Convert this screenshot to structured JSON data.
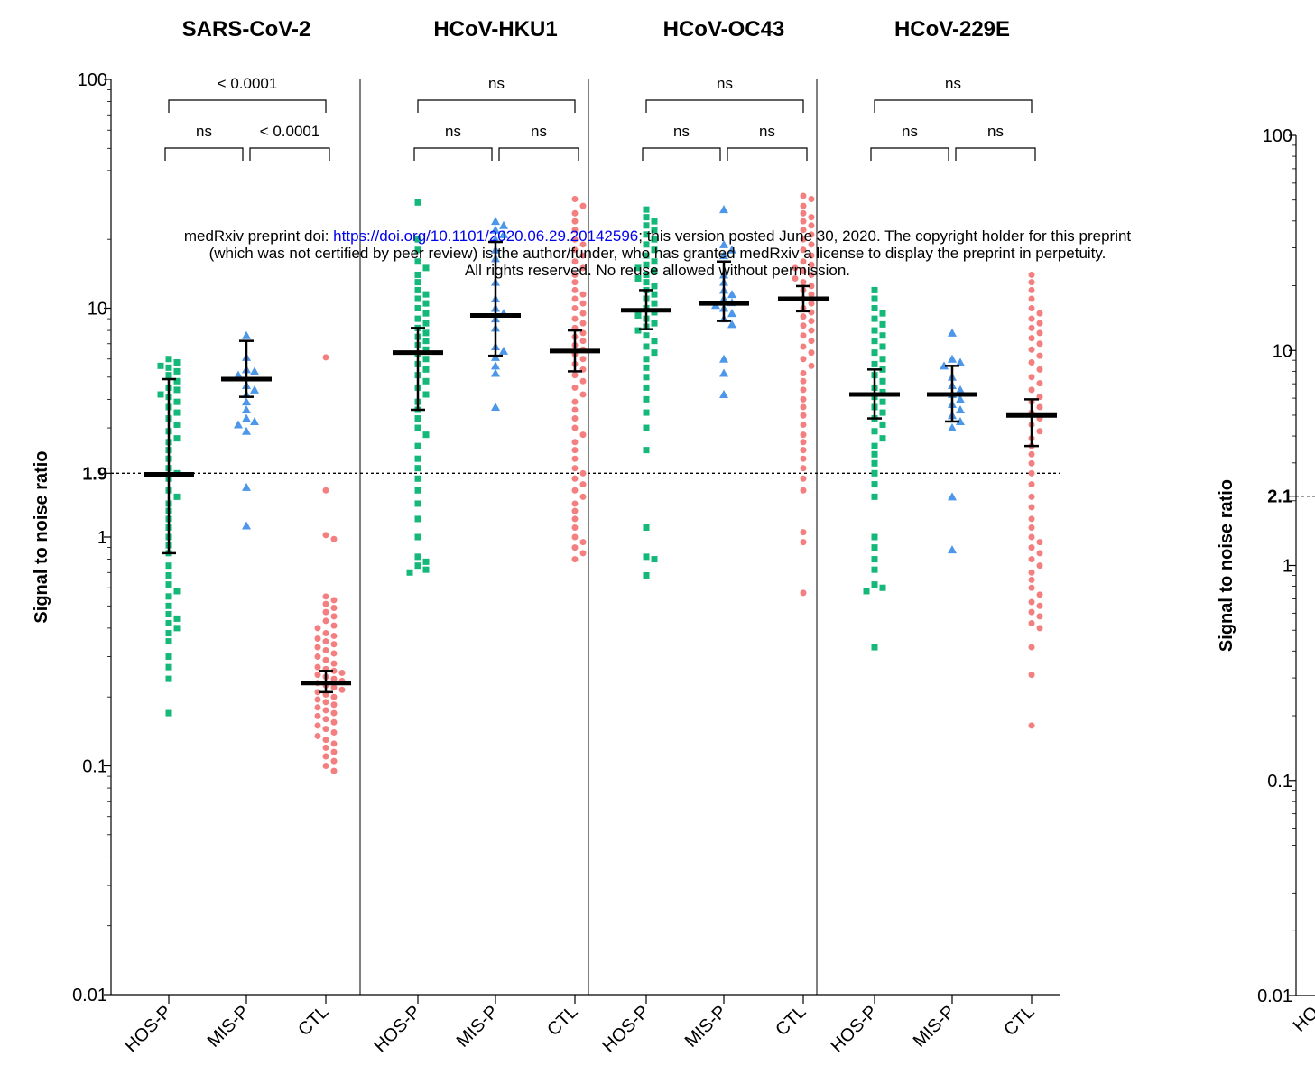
{
  "notice": {
    "line1_prefix": "medRxiv preprint doi: ",
    "doi": "https://doi.org/10.1101/2020.06.29.20142596",
    "line1_suffix": "; this version posted June 30, 2020. The copyright holder for this preprint",
    "line2": "(which was not certified by peer review) is the author/funder, who has granted medRxiv a license to display the preprint in perpetuity.",
    "line3": "All rights reserved. No reuse allowed without permission."
  },
  "colors": {
    "HOS-P": "#14b878",
    "MIS-P": "#4c97ea",
    "CTL": "#f37f80"
  },
  "chart_data": [
    {
      "type": "scatter",
      "ylabel": "Signal to noise ratio",
      "yscale": "log",
      "ylim": [
        0.01,
        100
      ],
      "yticks": [
        "0.01",
        "0.1",
        "1",
        "1.9",
        "10",
        "100"
      ],
      "threshold": 1.9,
      "threshold_label": "1.9",
      "grid": false,
      "categories": [
        "HOS-P",
        "MIS-P",
        "CTL"
      ],
      "panels": [
        {
          "title": "SARS-CoV-2",
          "summary": {
            "HOS-P": {
              "median": 1.88,
              "ci": [
                0.85,
                4.9
              ]
            },
            "MIS-P": {
              "median": 4.9,
              "ci": [
                4.1,
                7.2
              ]
            },
            "CTL": {
              "median": 0.23,
              "ci": [
                0.21,
                0.26
              ]
            }
          },
          "significance": [
            {
              "groups": [
                "HOS-P",
                "CTL"
              ],
              "label": "< 0.0001"
            },
            {
              "groups": [
                "HOS-P",
                "MIS-P"
              ],
              "label": "ns"
            },
            {
              "groups": [
                "MIS-P",
                "CTL"
              ],
              "label": "< 0.0001"
            }
          ],
          "points": {
            "HOS-P": [
              6.0,
              5.8,
              5.6,
              5.5,
              5.3,
              5.1,
              4.8,
              4.5,
              4.4,
              4.2,
              4.1,
              3.9,
              3.7,
              3.5,
              3.3,
              3.1,
              2.9,
              2.7,
              2.6,
              2.4,
              2.2,
              2.0,
              1.9,
              1.8,
              1.6,
              1.5,
              1.4,
              1.3,
              1.2,
              1.1,
              1.0,
              0.92,
              0.85,
              0.75,
              0.68,
              0.62,
              0.58,
              0.55,
              0.5,
              0.46,
              0.44,
              0.42,
              0.4,
              0.38,
              0.35,
              0.3,
              0.27,
              0.24,
              0.17
            ],
            "MIS-P": [
              7.6,
              6.1,
              5.4,
              5.3,
              5.1,
              4.6,
              4.4,
              4.2,
              3.9,
              3.6,
              3.3,
              3.2,
              3.1,
              2.9,
              1.65,
              1.12
            ],
            "CTL": [
              6.1,
              1.6,
              1.02,
              0.98,
              0.55,
              0.53,
              0.51,
              0.49,
              0.47,
              0.45,
              0.43,
              0.41,
              0.4,
              0.38,
              0.37,
              0.36,
              0.35,
              0.34,
              0.33,
              0.32,
              0.31,
              0.3,
              0.29,
              0.28,
              0.27,
              0.265,
              0.26,
              0.255,
              0.25,
              0.245,
              0.24,
              0.235,
              0.23,
              0.225,
              0.22,
              0.215,
              0.21,
              0.205,
              0.2,
              0.195,
              0.19,
              0.185,
              0.18,
              0.175,
              0.17,
              0.165,
              0.16,
              0.155,
              0.15,
              0.145,
              0.14,
              0.135,
              0.13,
              0.125,
              0.12,
              0.115,
              0.11,
              0.105,
              0.1,
              0.095
            ]
          }
        },
        {
          "title": "HCoV-HKU1",
          "summary": {
            "HOS-P": {
              "median": 6.4,
              "ci": [
                3.6,
                8.2
              ]
            },
            "MIS-P": {
              "median": 9.3,
              "ci": [
                6.2,
                19.5
              ]
            },
            "CTL": {
              "median": 6.5,
              "ci": [
                5.3,
                8.0
              ]
            }
          },
          "significance": [
            {
              "groups": [
                "HOS-P",
                "CTL"
              ],
              "label": "ns"
            },
            {
              "groups": [
                "HOS-P",
                "MIS-P"
              ],
              "label": "ns"
            },
            {
              "groups": [
                "MIS-P",
                "CTL"
              ],
              "label": "ns"
            }
          ],
          "points": {
            "HOS-P": [
              29.0,
              20.0,
              18.0,
              16.0,
              15.0,
              14.0,
              13.0,
              12.0,
              11.5,
              11.0,
              10.5,
              10.0,
              9.5,
              9.0,
              8.6,
              8.2,
              7.8,
              7.5,
              7.2,
              6.9,
              6.6,
              6.3,
              6.0,
              5.7,
              5.4,
              5.1,
              4.8,
              4.5,
              4.2,
              3.9,
              3.6,
              3.3,
              3.0,
              2.8,
              2.5,
              2.2,
              2.0,
              1.8,
              1.6,
              1.4,
              1.2,
              1.0,
              0.82,
              0.78,
              0.75,
              0.72,
              0.7
            ],
            "MIS-P": [
              24.0,
              23.0,
              22.0,
              21.0,
              20.0,
              18.0,
              16.5,
              13.0,
              11.0,
              10.0,
              9.5,
              9.0,
              8.2,
              6.8,
              6.5,
              6.1,
              5.6,
              5.2,
              3.7
            ],
            "CTL": [
              30.0,
              28.0,
              26.0,
              24.0,
              22.0,
              20.0,
              19.0,
              18.0,
              17.0,
              16.0,
              15.0,
              14.0,
              13.0,
              12.0,
              11.5,
              11.0,
              10.5,
              10.0,
              9.5,
              9.0,
              8.6,
              8.2,
              7.8,
              7.5,
              7.2,
              6.9,
              6.6,
              6.3,
              6.0,
              5.7,
              5.4,
              5.1,
              4.8,
              4.5,
              4.2,
              3.9,
              3.6,
              3.3,
              3.0,
              2.8,
              2.6,
              2.4,
              2.2,
              2.0,
              1.9,
              1.8,
              1.7,
              1.6,
              1.5,
              1.4,
              1.3,
              1.2,
              1.1,
              1.0,
              0.95,
              0.9,
              0.85,
              0.8
            ]
          }
        },
        {
          "title": "HCoV-OC43",
          "summary": {
            "HOS-P": {
              "median": 9.8,
              "ci": [
                8.1,
                12.0
              ]
            },
            "MIS-P": {
              "median": 10.5,
              "ci": [
                8.8,
                16.0
              ]
            },
            "CTL": {
              "median": 11.0,
              "ci": [
                9.7,
                12.5
              ]
            }
          },
          "significance": [
            {
              "groups": [
                "HOS-P",
                "CTL"
              ],
              "label": "ns"
            },
            {
              "groups": [
                "HOS-P",
                "MIS-P"
              ],
              "label": "ns"
            },
            {
              "groups": [
                "MIS-P",
                "CTL"
              ],
              "label": "ns"
            }
          ],
          "points": {
            "HOS-P": [
              27.0,
              25.0,
              24.0,
              23.0,
              22.0,
              21.0,
              20.0,
              19.0,
              18.0,
              17.0,
              16.0,
              15.5,
              15.0,
              14.5,
              14.0,
              13.5,
              13.0,
              12.5,
              12.0,
              11.5,
              11.0,
              10.5,
              10.0,
              9.6,
              9.3,
              9.0,
              8.6,
              8.3,
              8.0,
              7.6,
              7.2,
              6.8,
              6.4,
              6.0,
              5.5,
              5.0,
              4.5,
              4.0,
              3.5,
              3.0,
              2.4,
              1.1,
              0.82,
              0.8,
              0.68
            ],
            "MIS-P": [
              27.0,
              19.0,
              18.0,
              17.0,
              14.0,
              13.0,
              12.0,
              11.5,
              11.0,
              10.6,
              10.3,
              10.0,
              9.5,
              9.0,
              8.5,
              6.0,
              5.2,
              4.2
            ],
            "CTL": [
              31.0,
              30.0,
              28.0,
              26.0,
              25.0,
              24.0,
              23.0,
              22.0,
              21.0,
              20.0,
              19.0,
              18.0,
              17.0,
              16.0,
              15.5,
              15.0,
              14.5,
              14.0,
              13.5,
              13.0,
              12.5,
              12.0,
              11.5,
              11.0,
              10.5,
              10.0,
              9.6,
              9.2,
              8.8,
              8.4,
              8.0,
              7.6,
              7.2,
              6.8,
              6.4,
              6.0,
              5.6,
              5.2,
              4.8,
              4.4,
              4.0,
              3.7,
              3.4,
              3.1,
              2.8,
              2.6,
              2.4,
              2.2,
              2.0,
              1.8,
              1.6,
              1.05,
              0.95,
              0.57
            ]
          }
        },
        {
          "title": "HCoV-229E",
          "summary": {
            "HOS-P": {
              "median": 4.2,
              "ci": [
                3.3,
                5.4
              ]
            },
            "MIS-P": {
              "median": 4.2,
              "ci": [
                3.2,
                5.6
              ]
            },
            "CTL": {
              "median": 3.4,
              "ci": [
                2.5,
                4.0
              ]
            }
          },
          "significance": [
            {
              "groups": [
                "HOS-P",
                "CTL"
              ],
              "label": "ns"
            },
            {
              "groups": [
                "HOS-P",
                "MIS-P"
              ],
              "label": "ns"
            },
            {
              "groups": [
                "MIS-P",
                "CTL"
              ],
              "label": "ns"
            }
          ],
          "points": {
            "HOS-P": [
              12.0,
              11.0,
              10.0,
              9.5,
              9.0,
              8.5,
              8.0,
              7.6,
              7.2,
              6.8,
              6.4,
              6.0,
              5.7,
              5.4,
              5.1,
              4.8,
              4.5,
              4.3,
              4.1,
              3.9,
              3.7,
              3.5,
              3.3,
              3.1,
              2.9,
              2.7,
              2.5,
              2.3,
              2.1,
              1.9,
              1.7,
              1.5,
              1.0,
              0.9,
              0.8,
              0.72,
              0.62,
              0.6,
              0.58,
              0.33
            ],
            "MIS-P": [
              7.8,
              6.0,
              5.8,
              5.6,
              5.0,
              4.6,
              4.4,
              4.2,
              4.0,
              3.8,
              3.6,
              3.4,
              3.2,
              3.0,
              1.5,
              0.88
            ],
            "CTL": [
              14.0,
              13.0,
              12.0,
              11.0,
              10.0,
              9.5,
              9.0,
              8.6,
              8.2,
              7.8,
              7.4,
              7.0,
              6.6,
              6.2,
              5.8,
              5.4,
              5.0,
              4.7,
              4.4,
              4.1,
              3.9,
              3.7,
              3.5,
              3.3,
              3.1,
              2.9,
              2.7,
              2.5,
              2.3,
              2.1,
              1.9,
              1.7,
              1.5,
              1.35,
              1.2,
              1.1,
              1.0,
              0.95,
              0.9,
              0.85,
              0.8,
              0.75,
              0.7,
              0.65,
              0.6,
              0.56,
              0.52,
              0.5,
              0.47,
              0.45,
              0.42,
              0.4,
              0.33,
              0.25,
              0.15
            ]
          }
        }
      ]
    },
    {
      "type": "scatter",
      "ylabel": "Signal to noise ratio",
      "yscale": "log",
      "ylim": [
        0.01,
        100
      ],
      "yticks": [
        "0.01",
        "0.1",
        "1",
        "2.1",
        "10",
        "100"
      ],
      "threshold": 2.1,
      "threshold_label": "2.1",
      "categories": [
        "HO"
      ],
      "partial": true
    }
  ]
}
